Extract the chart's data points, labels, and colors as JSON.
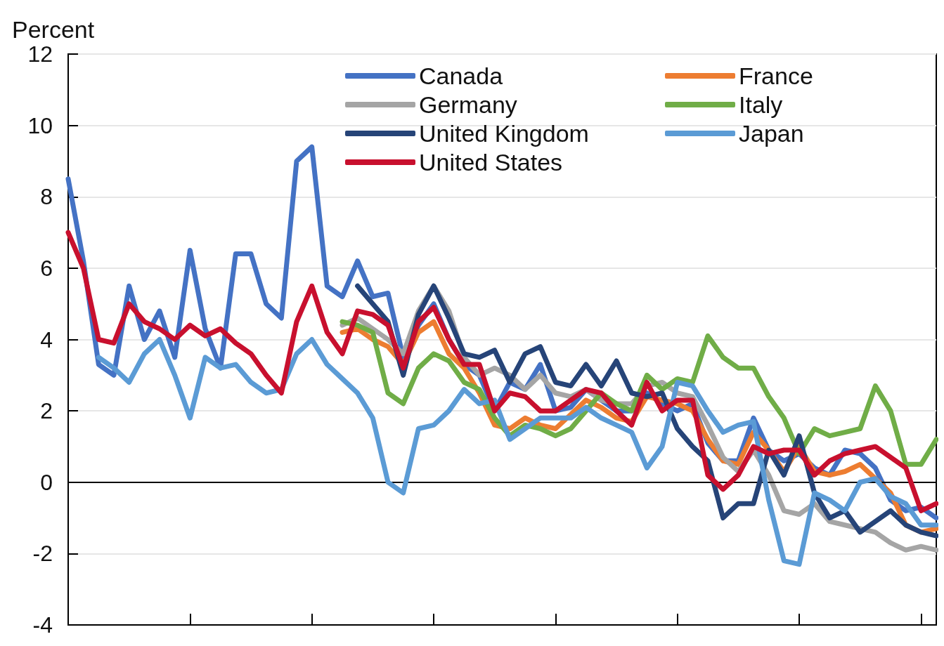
{
  "chart_data": {
    "type": "line",
    "ylabel": "Percent",
    "categories": [
      null,
      null,
      null,
      null,
      null,
      null,
      null,
      null,
      null,
      null,
      null,
      null,
      null,
      null,
      null,
      null,
      null,
      null,
      null,
      null,
      null,
      null,
      null,
      null,
      null,
      null,
      null,
      null,
      null,
      null,
      null,
      null,
      null,
      null,
      null,
      null,
      null,
      null,
      null,
      null,
      null,
      null,
      null,
      null,
      null,
      null,
      null,
      null,
      null,
      null,
      null,
      null,
      null,
      null,
      null,
      null,
      null,
      null
    ],
    "series": [
      {
        "name": "Canada",
        "color": "#4472c4",
        "values": [
          8.5,
          6.2,
          3.3,
          3.0,
          5.5,
          4.0,
          4.8,
          3.5,
          6.5,
          4.3,
          3.2,
          6.4,
          6.4,
          5.0,
          4.6,
          9.0,
          9.4,
          5.5,
          5.2,
          6.2,
          5.2,
          5.3,
          3.5,
          4.4,
          5.0,
          4.0,
          3.3,
          3.0,
          2.0,
          2.8,
          2.6,
          3.3,
          2.0,
          2.1,
          2.6,
          2.3,
          2.0,
          2.0,
          2.5,
          2.2,
          2.0,
          2.2,
          1.1,
          0.6,
          0.6,
          1.8,
          0.9,
          0.6,
          0.8,
          0.4,
          0.2,
          0.9,
          0.8,
          0.4,
          -0.5,
          -0.8,
          -0.7,
          -1.0
        ]
      },
      {
        "name": "France",
        "color": "#ed7d31",
        "values": [
          null,
          null,
          null,
          null,
          null,
          null,
          null,
          null,
          null,
          null,
          null,
          null,
          null,
          null,
          null,
          null,
          null,
          null,
          4.2,
          4.3,
          4.0,
          3.8,
          3.3,
          4.2,
          4.5,
          3.6,
          3.2,
          2.5,
          1.6,
          1.5,
          1.8,
          1.6,
          1.5,
          1.9,
          2.3,
          2.1,
          1.8,
          1.7,
          2.4,
          2.3,
          2.2,
          2.0,
          1.2,
          0.6,
          0.5,
          1.4,
          0.9,
          0.3,
          1.0,
          0.3,
          0.2,
          0.3,
          0.5,
          0.1,
          -0.3,
          -1.2,
          -1.4,
          -1.3
        ]
      },
      {
        "name": "Germany",
        "color": "#a5a5a5",
        "values": [
          null,
          null,
          null,
          null,
          null,
          null,
          null,
          null,
          null,
          null,
          null,
          null,
          null,
          null,
          null,
          null,
          null,
          null,
          4.4,
          4.6,
          4.3,
          4.0,
          3.6,
          4.8,
          5.5,
          4.8,
          3.5,
          3.0,
          3.2,
          3.0,
          2.6,
          3.0,
          2.5,
          2.4,
          2.6,
          2.3,
          2.2,
          2.2,
          2.7,
          2.8,
          2.5,
          2.4,
          1.6,
          0.7,
          0.3,
          0.9,
          0.2,
          -0.8,
          -0.9,
          -0.6,
          -1.1,
          -1.2,
          -1.3,
          -1.4,
          -1.7,
          -1.9,
          -1.8,
          -1.9
        ]
      },
      {
        "name": "Italy",
        "color": "#70ad47",
        "values": [
          null,
          null,
          null,
          null,
          null,
          null,
          null,
          null,
          null,
          null,
          null,
          null,
          null,
          null,
          null,
          null,
          null,
          null,
          4.5,
          4.4,
          4.2,
          2.5,
          2.2,
          3.2,
          3.6,
          3.4,
          2.8,
          2.6,
          1.8,
          1.3,
          1.6,
          1.5,
          1.3,
          1.5,
          2.0,
          2.5,
          2.2,
          2.0,
          3.0,
          2.6,
          2.9,
          2.8,
          4.1,
          3.5,
          3.2,
          3.2,
          2.4,
          1.8,
          0.8,
          1.5,
          1.3,
          1.4,
          1.5,
          2.7,
          2.0,
          0.5,
          0.5,
          1.2
        ]
      },
      {
        "name": "United Kingdom",
        "color": "#264478",
        "values": [
          null,
          null,
          null,
          null,
          null,
          null,
          null,
          null,
          null,
          null,
          null,
          null,
          null,
          null,
          null,
          null,
          null,
          null,
          null,
          5.5,
          5.0,
          4.5,
          3.0,
          4.7,
          5.5,
          4.6,
          3.6,
          3.5,
          3.7,
          2.8,
          3.6,
          3.8,
          2.8,
          2.7,
          3.3,
          2.7,
          3.4,
          2.5,
          2.4,
          2.5,
          1.5,
          1.0,
          0.6,
          -1.0,
          -0.6,
          -0.6,
          0.9,
          0.2,
          1.3,
          -0.3,
          -1.0,
          -0.8,
          -1.4,
          -1.1,
          -0.8,
          -1.2,
          -1.4,
          -1.5
        ]
      },
      {
        "name": "Japan",
        "color": "#5b9bd5",
        "values": [
          null,
          null,
          3.5,
          3.2,
          2.8,
          3.6,
          4.0,
          3.0,
          1.8,
          3.5,
          3.2,
          3.3,
          2.8,
          2.5,
          2.6,
          3.6,
          4.0,
          3.3,
          2.9,
          2.5,
          1.8,
          0.0,
          -0.3,
          1.5,
          1.6,
          2.0,
          2.6,
          2.2,
          2.3,
          1.2,
          1.5,
          1.8,
          1.8,
          1.8,
          2.1,
          1.8,
          1.6,
          1.4,
          0.4,
          1.0,
          2.8,
          2.7,
          2.0,
          1.4,
          1.6,
          1.7,
          -0.5,
          -2.2,
          -2.3,
          -0.3,
          -0.5,
          -0.8,
          0.0,
          0.1,
          -0.4,
          -0.6,
          -1.2,
          -1.2
        ]
      },
      {
        "name": "United States",
        "color": "#c8102e",
        "values": [
          7.0,
          6.0,
          4.0,
          3.9,
          5.0,
          4.5,
          4.3,
          4.0,
          4.4,
          4.1,
          4.3,
          3.9,
          3.6,
          3.0,
          2.5,
          4.5,
          5.5,
          4.2,
          3.6,
          4.8,
          4.7,
          4.4,
          3.2,
          4.5,
          4.9,
          4.0,
          3.3,
          3.3,
          2.0,
          2.5,
          2.4,
          2.0,
          2.0,
          2.3,
          2.6,
          2.5,
          2.0,
          1.6,
          2.8,
          2.0,
          2.3,
          2.3,
          0.2,
          -0.2,
          0.2,
          1.0,
          0.8,
          0.9,
          0.9,
          0.2,
          0.6,
          0.8,
          0.9,
          1.0,
          0.7,
          0.4,
          -0.8,
          -0.6
        ]
      }
    ],
    "ylim": [
      -4,
      12
    ],
    "yticks": [
      -4,
      -2,
      0,
      2,
      4,
      6,
      8,
      10,
      12
    ],
    "grid": "y",
    "legend": "top",
    "marker": "none",
    "line_style": "solid",
    "ref_lines": [
      {
        "axis": "y",
        "value": 0,
        "color": "#000000"
      }
    ]
  }
}
